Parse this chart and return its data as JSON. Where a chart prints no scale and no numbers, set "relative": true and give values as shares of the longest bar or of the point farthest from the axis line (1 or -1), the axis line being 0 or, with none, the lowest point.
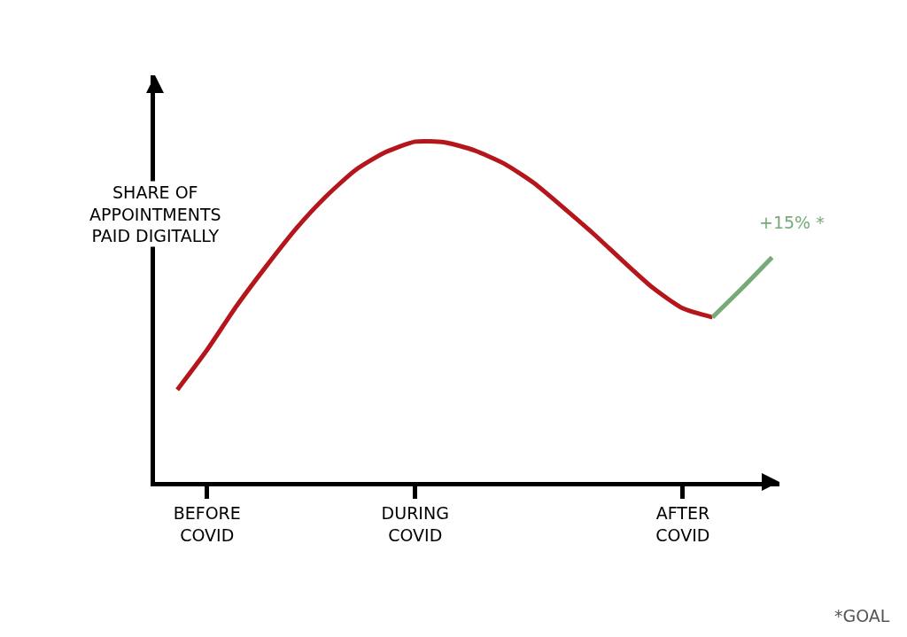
{
  "chart_data": {
    "type": "line",
    "relative": true,
    "ylabel": "SHARE OF\nAPPOINTMENTS\nPAID DIGITALLY",
    "categories": [
      null,
      "BEFORE\nCOVID",
      null,
      null,
      null,
      null,
      null,
      null,
      "DURING\nCOVID",
      null,
      null,
      null,
      null,
      null,
      null,
      null,
      null,
      "AFTER\nCOVID",
      null,
      null,
      null
    ],
    "series": [
      {
        "color": "#b5161b",
        "values": [
          0.271,
          0.388,
          0.518,
          0.635,
          0.745,
          0.839,
          0.917,
          0.969,
          1.0,
          0.998,
          0.974,
          0.935,
          0.878,
          0.805,
          0.729,
          0.648,
          0.57,
          0.51,
          0.484,
          null,
          null
        ]
      },
      {
        "color": "#77a97a",
        "values": [
          null,
          null,
          null,
          null,
          null,
          null,
          null,
          null,
          null,
          null,
          null,
          null,
          null,
          null,
          null,
          null,
          null,
          null,
          0.484,
          0.57,
          0.66
        ]
      }
    ],
    "annotations": [
      "+15% *",
      "*GOAL"
    ],
    "marker": "none",
    "line_style": "solid"
  }
}
